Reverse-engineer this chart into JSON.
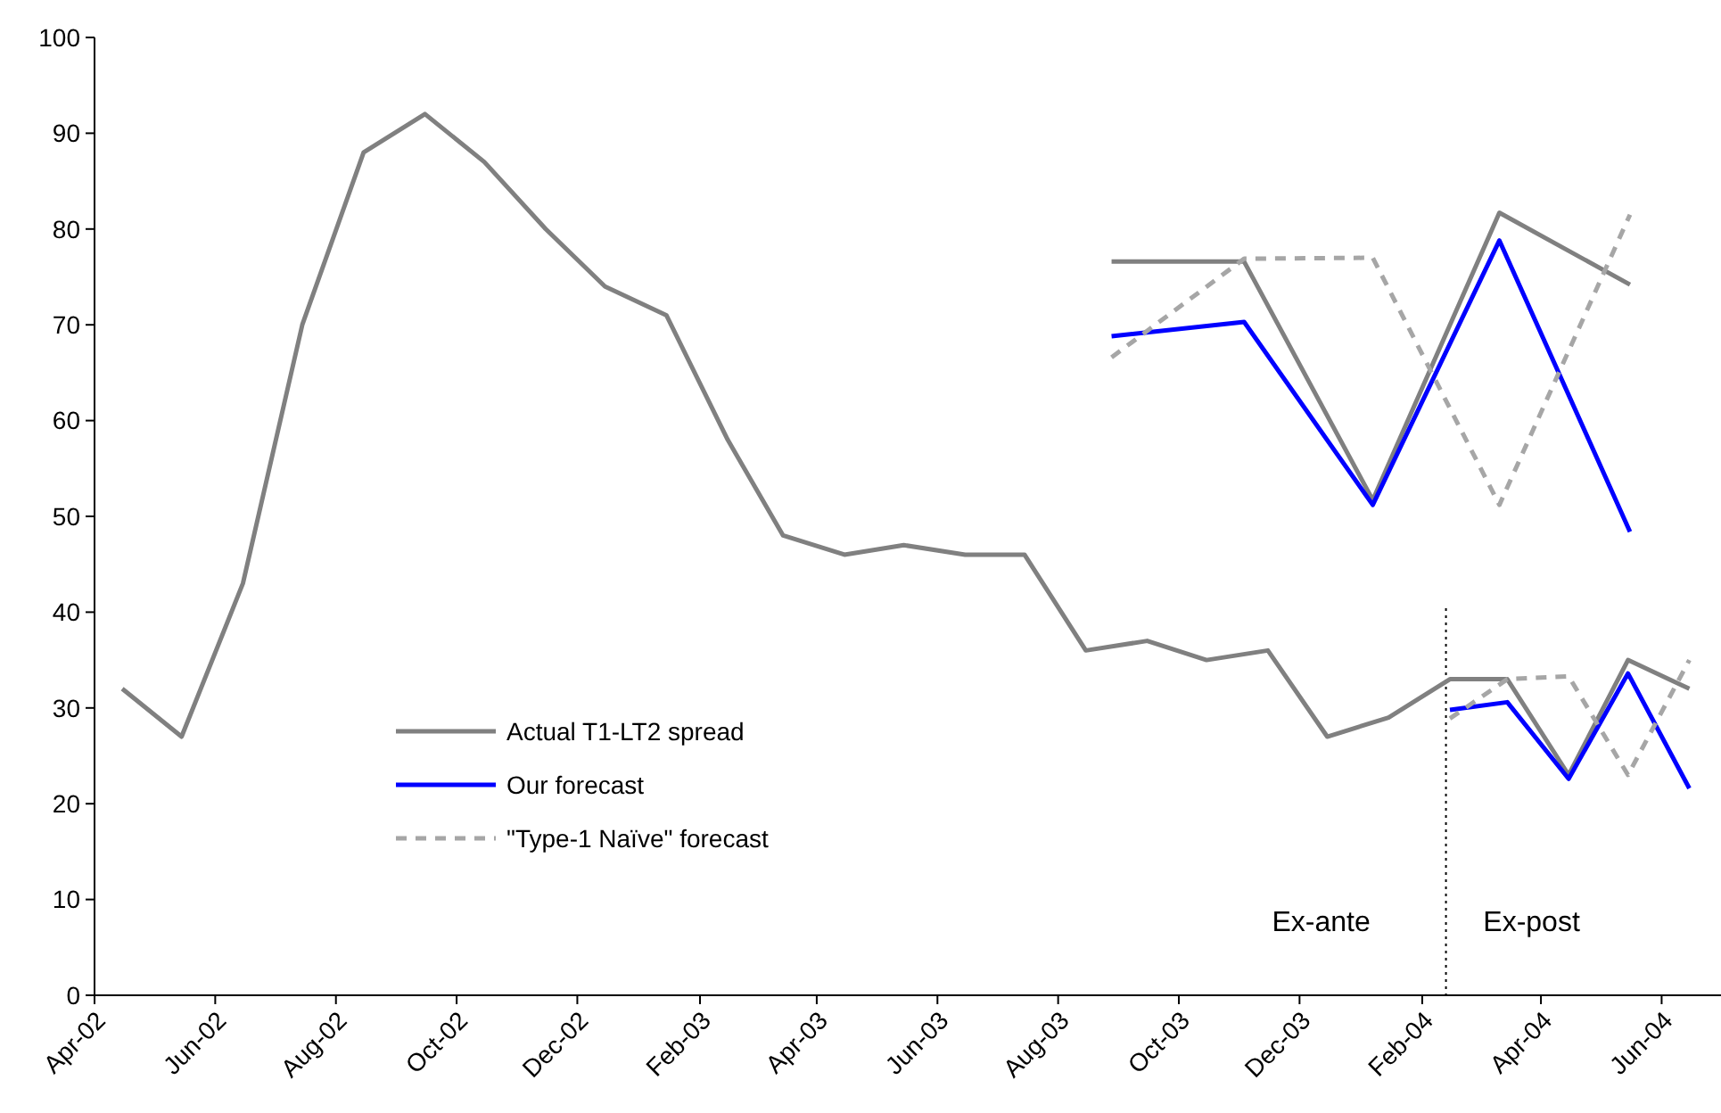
{
  "chart_data": {
    "type": "line",
    "legend": "bottom left",
    "grid": false,
    "marker": "none",
    "xlim": [
      "2002-04-01",
      "2004-07-01"
    ],
    "xticks": [
      {
        "value": "2002-04",
        "label": "Apr-02"
      },
      {
        "value": "2002-06",
        "label": "Jun-02"
      },
      {
        "value": "2002-08",
        "label": "Aug-02"
      },
      {
        "value": "2002-10",
        "label": "Oct-02"
      },
      {
        "value": "2002-12",
        "label": "Dec-02"
      },
      {
        "value": "2003-02",
        "label": "Feb-03"
      },
      {
        "value": "2003-04",
        "label": "Apr-03"
      },
      {
        "value": "2003-06",
        "label": "Jun-03"
      },
      {
        "value": "2003-08",
        "label": "Aug-03"
      },
      {
        "value": "2003-10",
        "label": "Oct-03"
      },
      {
        "value": "2003-12",
        "label": "Dec-03"
      },
      {
        "value": "2004-02",
        "label": "Feb-04"
      },
      {
        "value": "2004-04",
        "label": "Apr-04"
      },
      {
        "value": "2004-06",
        "label": "Jun-04"
      }
    ],
    "ylim": [
      0,
      100
    ],
    "yticks": [
      0,
      10,
      20,
      30,
      40,
      50,
      60,
      70,
      80,
      90,
      100
    ],
    "series": [
      {
        "name": "Actual T1-LT2 spread",
        "color": "#808080",
        "line_style": "solid",
        "x": [
          "2002-04-15",
          "2002-05-15",
          "2002-06-15",
          "2002-07-15",
          "2002-08-15",
          "2002-09-15",
          "2002-10-15",
          "2002-11-15",
          "2002-12-15",
          "2003-01-15",
          "2003-02-15",
          "2003-03-15",
          "2003-04-15",
          "2003-05-15",
          "2003-06-15",
          "2003-07-15",
          "2003-08-15",
          "2003-09-15",
          "2003-10-15",
          "2003-11-15",
          "2003-12-15",
          "2004-01-15",
          "2004-02-15",
          "2004-03-15",
          "2004-04-15",
          "2004-05-15",
          "2004-06-15"
        ],
        "values": [
          32,
          27,
          43,
          70,
          88,
          92,
          87,
          80,
          74,
          71,
          58,
          48,
          46,
          47,
          46,
          46,
          36,
          37,
          35,
          36,
          27,
          29,
          33,
          33,
          23,
          35,
          32
        ]
      },
      {
        "name": "Our forecast",
        "color": "#0000ff",
        "line_style": "solid",
        "x": [
          "2004-02-15",
          "2004-03-15",
          "2004-04-15",
          "2004-05-15",
          "2004-06-15"
        ],
        "values": [
          29.8,
          30.6,
          22.6,
          33.6,
          21.6
        ]
      },
      {
        "name": "\"Type-1 Naïve\" forecast",
        "color": "#a6a6a6",
        "line_style": "dashed",
        "x": [
          "2004-02-15",
          "2004-03-15",
          "2004-04-15",
          "2004-05-15",
          "2004-06-15"
        ],
        "values": [
          28.9,
          33,
          33.3,
          23,
          35
        ]
      },
      {
        "color": "#808080",
        "line_style": "solid",
        "x": [
          "2003-08-28",
          "2003-11-03",
          "2004-01-07",
          "2004-03-11",
          "2004-05-16"
        ],
        "values": [
          76.6,
          76.6,
          51.7,
          81.7,
          74.2
        ]
      },
      {
        "color": "#0000ff",
        "line_style": "solid",
        "x": [
          "2003-08-28",
          "2003-11-03",
          "2004-01-07",
          "2004-03-11",
          "2004-05-16"
        ],
        "values": [
          68.8,
          70.3,
          51.2,
          78.8,
          48.4
        ]
      },
      {
        "color": "#a6a6a6",
        "line_style": "dashed",
        "x": [
          "2003-08-28",
          "2003-11-03",
          "2004-01-07",
          "2004-03-11",
          "2004-05-16"
        ],
        "values": [
          66.6,
          76.9,
          77,
          51.2,
          81.5
        ]
      }
    ],
    "ref_lines": [
      {
        "axis": "x",
        "value": "2004-02-13",
        "color": "#000000",
        "line_style": "dotted"
      }
    ],
    "annotations": [
      "Ex-ante",
      "Ex-post"
    ]
  }
}
